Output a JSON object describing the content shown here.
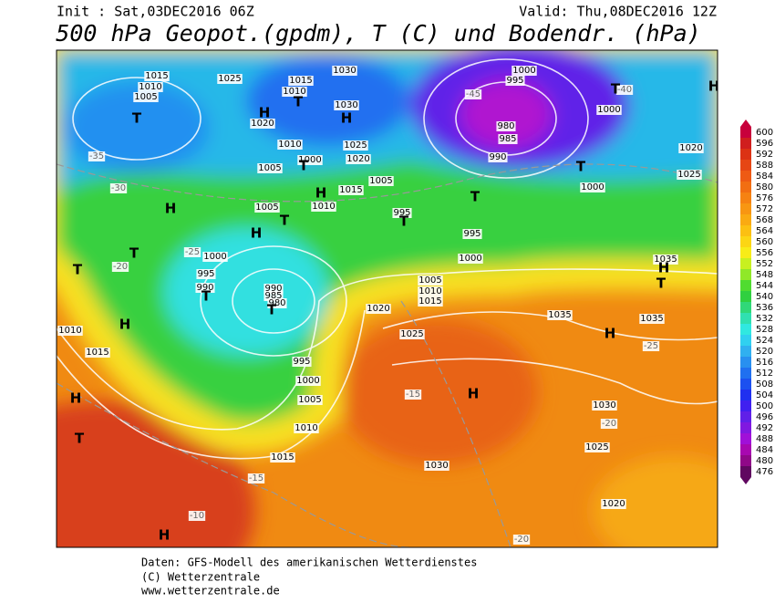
{
  "header": {
    "init": "Init : Sat,03DEC2016 06Z",
    "valid": "Valid: Thu,08DEC2016 12Z",
    "title": "500 hPa Geopot.(gpdm), T (C) und Bodendr. (hPa)"
  },
  "legend": {
    "labels": [
      600,
      596,
      592,
      588,
      584,
      580,
      576,
      572,
      568,
      564,
      560,
      556,
      552,
      548,
      544,
      540,
      536,
      532,
      528,
      524,
      520,
      516,
      512,
      508,
      504,
      500,
      496,
      492,
      488,
      484,
      480,
      476
    ],
    "colors": [
      "#c8003c",
      "#d01e1e",
      "#dc3214",
      "#e64614",
      "#ee5a14",
      "#f26e12",
      "#f68212",
      "#f89612",
      "#faaa12",
      "#fcc012",
      "#fcd614",
      "#f8ec18",
      "#c8f020",
      "#90e828",
      "#50dc30",
      "#30d040",
      "#30d878",
      "#30e0b0",
      "#30e8e0",
      "#30d0f0",
      "#30b0f0",
      "#2890f0",
      "#2070f0",
      "#1c50f0",
      "#2030f0",
      "#4020f0",
      "#6020e8",
      "#8018e0",
      "#a010d8",
      "#a808b0",
      "#900888",
      "#600860"
    ]
  },
  "map": {
    "isobar_labels": [
      1015,
      1010,
      1005,
      1025,
      1030,
      1015,
      1010,
      1000,
      995,
      1000,
      980,
      985,
      990,
      1020,
      1010,
      1000,
      1020,
      1025,
      1030,
      1005,
      1015,
      1010,
      1005,
      1005,
      995,
      995,
      1000,
      1035,
      1000,
      995,
      990,
      990,
      985,
      980,
      1005,
      1010,
      1015,
      1020,
      1025,
      1035,
      1035,
      1010,
      1015,
      995,
      1000,
      1005,
      1010,
      1015,
      1030,
      1030,
      1025,
      1020,
      1000,
      1020,
      1025
    ],
    "temperature_labels": [
      -35,
      -30,
      -25,
      -20,
      -15,
      -15,
      -10,
      -20,
      -20,
      -25,
      -40,
      -45
    ],
    "pressure_centers": [
      "T",
      "T",
      "H",
      "H",
      "T",
      "H",
      "H",
      "T",
      "H",
      "T",
      "T",
      "T",
      "T",
      "H",
      "H",
      "T",
      "H",
      "T",
      "T",
      "T",
      "T",
      "H",
      "H",
      "H",
      "T",
      "H"
    ]
  },
  "footer": [
    "Daten: GFS-Modell des amerikanischen Wetterdienstes",
    "(C) Wetterzentrale",
    "www.wetterzentrale.de"
  ]
}
